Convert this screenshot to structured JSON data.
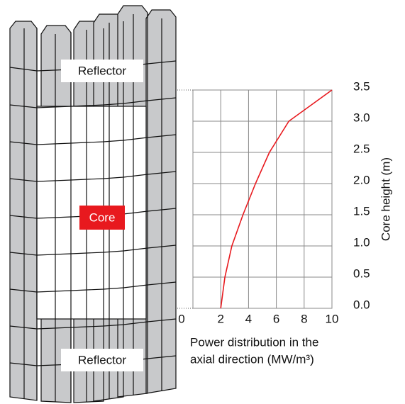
{
  "diagram": {
    "labels": [
      "Reflector",
      "Core",
      "Reflector"
    ]
  },
  "chart_data": {
    "type": "line",
    "x": [
      2,
      2.3,
      2.8,
      3.6,
      4.5,
      5.5,
      6.9,
      10
    ],
    "values": [
      0,
      0.5,
      1.0,
      1.5,
      2.0,
      2.5,
      3.0,
      3.5
    ],
    "color": "#e8191e",
    "x_label": [
      "Power distribution in the",
      "axial direction (MW/m³)"
    ],
    "y_label": "Core height (m)",
    "xlim": [
      0,
      10
    ],
    "xticks": [
      0,
      2,
      4,
      6,
      8,
      10
    ],
    "ylim": [
      0,
      3.5
    ],
    "yticks": [
      {
        "value": 0,
        "label": "0.0"
      },
      0.5,
      {
        "value": 1,
        "label": "1.0"
      },
      1.5,
      {
        "value": 2,
        "label": "2.0"
      },
      2.5,
      {
        "value": 3,
        "label": "3.0"
      },
      3.5
    ],
    "grid": true
  }
}
